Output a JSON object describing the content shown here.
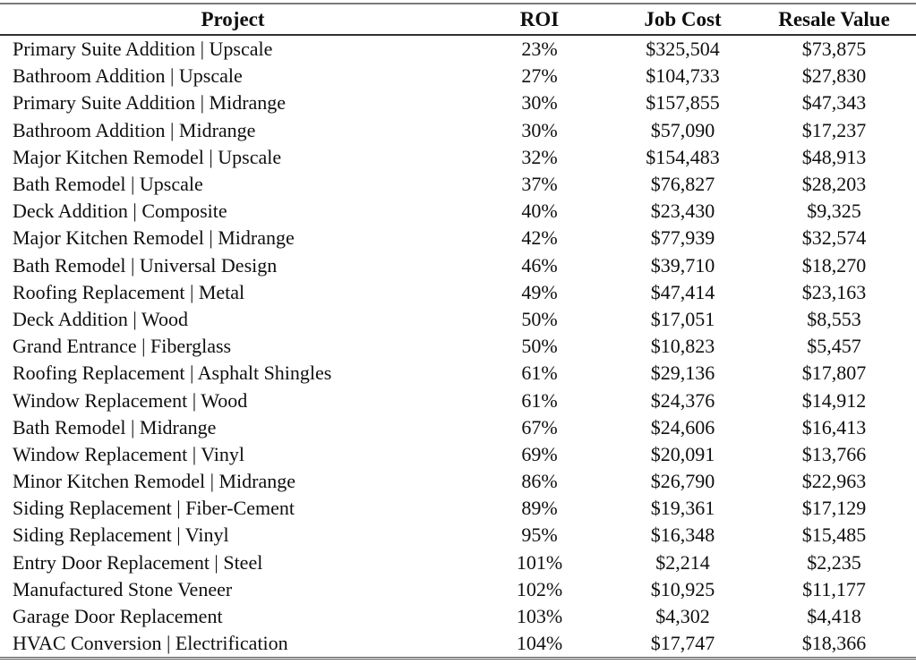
{
  "table": {
    "columns": [
      {
        "key": "project",
        "label": "Project"
      },
      {
        "key": "roi",
        "label": "ROI"
      },
      {
        "key": "job_cost",
        "label": "Job Cost"
      },
      {
        "key": "resale_value",
        "label": "Resale Value"
      }
    ],
    "rows": [
      {
        "project": "Primary Suite Addition | Upscale",
        "roi": "23%",
        "job_cost": "$325,504",
        "resale_value": "$73,875"
      },
      {
        "project": "Bathroom Addition | Upscale",
        "roi": "27%",
        "job_cost": "$104,733",
        "resale_value": "$27,830"
      },
      {
        "project": "Primary Suite Addition | Midrange",
        "roi": "30%",
        "job_cost": "$157,855",
        "resale_value": "$47,343"
      },
      {
        "project": "Bathroom Addition | Midrange",
        "roi": "30%",
        "job_cost": "$57,090",
        "resale_value": "$17,237"
      },
      {
        "project": "Major Kitchen Remodel | Upscale",
        "roi": "32%",
        "job_cost": "$154,483",
        "resale_value": "$48,913"
      },
      {
        "project": "Bath Remodel | Upscale",
        "roi": "37%",
        "job_cost": "$76,827",
        "resale_value": "$28,203"
      },
      {
        "project": "Deck Addition | Composite",
        "roi": "40%",
        "job_cost": "$23,430",
        "resale_value": "$9,325"
      },
      {
        "project": "Major Kitchen Remodel | Midrange",
        "roi": "42%",
        "job_cost": "$77,939",
        "resale_value": "$32,574"
      },
      {
        "project": "Bath Remodel | Universal Design",
        "roi": "46%",
        "job_cost": "$39,710",
        "resale_value": "$18,270"
      },
      {
        "project": "Roofing Replacement | Metal",
        "roi": "49%",
        "job_cost": "$47,414",
        "resale_value": "$23,163"
      },
      {
        "project": "Deck Addition | Wood",
        "roi": "50%",
        "job_cost": "$17,051",
        "resale_value": "$8,553"
      },
      {
        "project": "Grand Entrance | Fiberglass",
        "roi": "50%",
        "job_cost": "$10,823",
        "resale_value": "$5,457"
      },
      {
        "project": "Roofing Replacement | Asphalt Shingles",
        "roi": "61%",
        "job_cost": "$29,136",
        "resale_value": "$17,807"
      },
      {
        "project": "Window Replacement | Wood",
        "roi": "61%",
        "job_cost": "$24,376",
        "resale_value": "$14,912"
      },
      {
        "project": "Bath Remodel | Midrange",
        "roi": "67%",
        "job_cost": "$24,606",
        "resale_value": "$16,413"
      },
      {
        "project": "Window Replacement | Vinyl",
        "roi": "69%",
        "job_cost": "$20,091",
        "resale_value": "$13,766"
      },
      {
        "project": "Minor Kitchen Remodel | Midrange",
        "roi": "86%",
        "job_cost": "$26,790",
        "resale_value": "$22,963"
      },
      {
        "project": "Siding Replacement | Fiber-Cement",
        "roi": "89%",
        "job_cost": "$19,361",
        "resale_value": "$17,129"
      },
      {
        "project": "Siding Replacement | Vinyl",
        "roi": "95%",
        "job_cost": "$16,348",
        "resale_value": "$15,485"
      },
      {
        "project": "Entry Door Replacement | Steel",
        "roi": "101%",
        "job_cost": "$2,214",
        "resale_value": "$2,235"
      },
      {
        "project": "Manufactured Stone Veneer",
        "roi": "102%",
        "job_cost": "$10,925",
        "resale_value": "$11,177"
      },
      {
        "project": "Garage Door Replacement",
        "roi": "103%",
        "job_cost": "$4,302",
        "resale_value": "$4,418"
      },
      {
        "project": "HVAC Conversion | Electrification",
        "roi": "104%",
        "job_cost": "$17,747",
        "resale_value": "$18,366"
      }
    ]
  },
  "colors": {
    "background": "#ffffff",
    "text": "#0f0f0f",
    "rule_top": "#7a7a7a",
    "rule_header": "#303030",
    "rule_bottom": "#4f4f4f"
  },
  "chart_data": {
    "type": "table",
    "title": "",
    "columns": [
      "Project",
      "ROI",
      "Job Cost",
      "Resale Value"
    ],
    "rows": [
      [
        "Primary Suite Addition | Upscale",
        "23%",
        "$325,504",
        "$73,875"
      ],
      [
        "Bathroom Addition | Upscale",
        "27%",
        "$104,733",
        "$27,830"
      ],
      [
        "Primary Suite Addition | Midrange",
        "30%",
        "$157,855",
        "$47,343"
      ],
      [
        "Bathroom Addition | Midrange",
        "30%",
        "$57,090",
        "$17,237"
      ],
      [
        "Major Kitchen Remodel | Upscale",
        "32%",
        "$154,483",
        "$48,913"
      ],
      [
        "Bath Remodel | Upscale",
        "37%",
        "$76,827",
        "$28,203"
      ],
      [
        "Deck Addition | Composite",
        "40%",
        "$23,430",
        "$9,325"
      ],
      [
        "Major Kitchen Remodel | Midrange",
        "42%",
        "$77,939",
        "$32,574"
      ],
      [
        "Bath Remodel | Universal Design",
        "46%",
        "$39,710",
        "$18,270"
      ],
      [
        "Roofing Replacement | Metal",
        "49%",
        "$47,414",
        "$23,163"
      ],
      [
        "Deck Addition | Wood",
        "50%",
        "$17,051",
        "$8,553"
      ],
      [
        "Grand Entrance | Fiberglass",
        "50%",
        "$10,823",
        "$5,457"
      ],
      [
        "Roofing Replacement | Asphalt Shingles",
        "61%",
        "$29,136",
        "$17,807"
      ],
      [
        "Window Replacement | Wood",
        "61%",
        "$24,376",
        "$14,912"
      ],
      [
        "Bath Remodel | Midrange",
        "67%",
        "$24,606",
        "$16,413"
      ],
      [
        "Window Replacement | Vinyl",
        "69%",
        "$20,091",
        "$13,766"
      ],
      [
        "Minor Kitchen Remodel | Midrange",
        "86%",
        "$26,790",
        "$22,963"
      ],
      [
        "Siding Replacement | Fiber-Cement",
        "89%",
        "$19,361",
        "$17,129"
      ],
      [
        "Siding Replacement | Vinyl",
        "95%",
        "$16,348",
        "$15,485"
      ],
      [
        "Entry Door Replacement | Steel",
        "101%",
        "$2,214",
        "$2,235"
      ],
      [
        "Manufactured Stone Veneer",
        "102%",
        "$10,925",
        "$11,177"
      ],
      [
        "Garage Door Replacement",
        "103%",
        "$4,302",
        "$4,418"
      ],
      [
        "HVAC Conversion | Electrification",
        "104%",
        "$17,747",
        "$18,366"
      ]
    ]
  }
}
